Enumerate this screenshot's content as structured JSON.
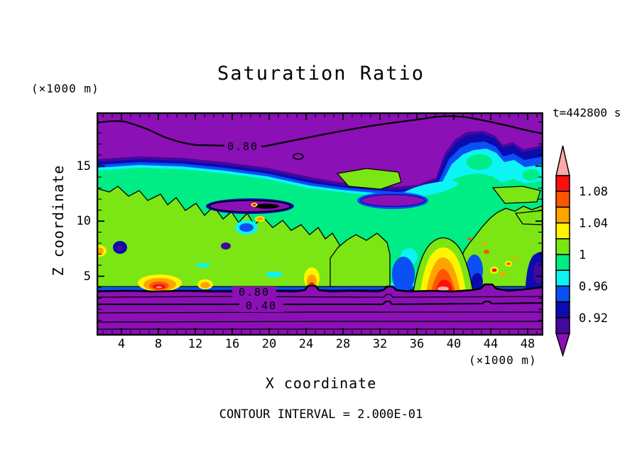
{
  "chart_data": {
    "type": "heatmap",
    "subtype": "filled-contour",
    "title": "Saturation Ratio",
    "xlabel": "X coordinate",
    "ylabel": "Z coordinate",
    "x_units_label": "(×1000 m)",
    "y_units_label": "(×1000 m)",
    "time_annotation": "t=442800 s",
    "contour_interval_label": "CONTOUR INTERVAL = 2.000E-01",
    "contour_interval": 0.2,
    "xlim": [
      1,
      50
    ],
    "ylim": [
      0,
      20
    ],
    "x_major_ticks": [
      4,
      8,
      12,
      16,
      20,
      24,
      28,
      32,
      36,
      40,
      44,
      48
    ],
    "x_minor_tick_step": 1,
    "y_major_ticks": [
      5,
      10,
      15
    ],
    "y_minor_tick_step": 1,
    "grid": false,
    "legend_position": "right",
    "colorbar": {
      "orientation": "vertical",
      "over_color": "#FFAAAA",
      "under_color": "#8B10B5",
      "levels": [
        0.9,
        0.92,
        0.94,
        0.96,
        0.98,
        1.0,
        1.02,
        1.04,
        1.06,
        1.08,
        1.1
      ],
      "segment_colors": [
        "#FB0E0E",
        "#FF5500",
        "#FFA300",
        "#FFF500",
        "#7CE614",
        "#00EC85",
        "#0CF4F4",
        "#0A50F5",
        "#0B0BB0",
        "#44089E"
      ],
      "segment_ranges": [
        [
          1.08,
          1.1
        ],
        [
          1.06,
          1.08
        ],
        [
          1.04,
          1.06
        ],
        [
          1.02,
          1.04
        ],
        [
          1.0,
          1.02
        ],
        [
          0.98,
          1.0
        ],
        [
          0.96,
          0.98
        ],
        [
          0.94,
          0.96
        ],
        [
          0.92,
          0.94
        ],
        [
          0.9,
          0.92
        ]
      ],
      "tick_labels": [
        {
          "text": "1.08",
          "at": 1.08
        },
        {
          "text": "1.04",
          "at": 1.04
        },
        {
          "text": "1",
          "at": 1.0
        },
        {
          "text": "0.96",
          "at": 0.96
        },
        {
          "text": "0.92",
          "at": 0.92
        }
      ]
    },
    "labeled_contours": [
      0.8,
      0.4
    ],
    "contour_label_instances": {
      "top": "0.80",
      "bottom_a": "0.80",
      "bottom_b": "0.40"
    },
    "features": [
      "dry purple layer (S<0.80) aloft above z≈17 ×1000 m, bounded below by wavy labeled 0.80 contour",
      "deep dry purple layer below z≈4 ×1000 m with stacked quasi-horizontal contours labeled 0.80 and 0.40",
      "near-saturated cloud layer (S≈0.96–1.02, green shades) spanning z≈4–17 ×1000 m across all x",
      "supersaturation plumes (S up to >1.10, yellow/orange/red/pink) near x≈8, 24, 38–40 just above the lower dry layer",
      "subsaturated pockets (S≈0.90–0.96, cyan/blue/navy) near x≈43–48 around z≈13–16 and in thin lenses near z≈11"
    ],
    "line_color": "#000000"
  }
}
